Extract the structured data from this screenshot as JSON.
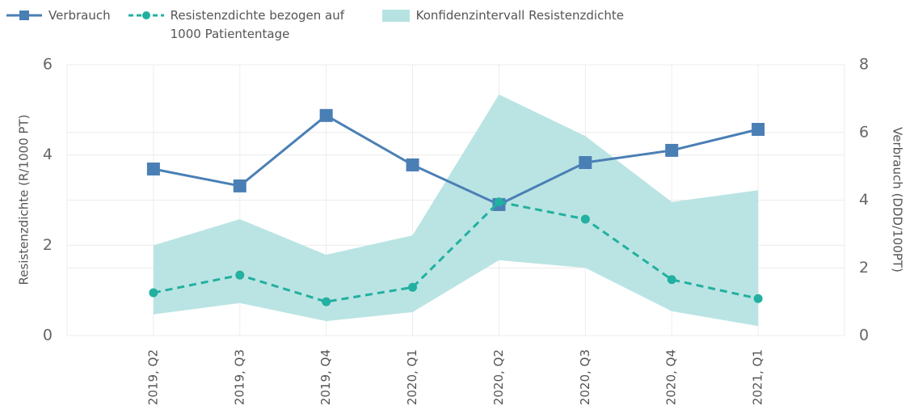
{
  "chart_data": {
    "type": "line",
    "categories": [
      "2019, Q2",
      "2019, Q3",
      "2019, Q4",
      "2020, Q1",
      "2020, Q2",
      "2020, Q3",
      "2020, Q4",
      "2021, Q1"
    ],
    "ylabel": "Resistenzdichte (R/1000 PT)",
    "y2label": "Verbrauch (DDD/100PT)",
    "ylim": [
      0,
      6
    ],
    "yticks": [
      0,
      2,
      4,
      6
    ],
    "y2lim": [
      0,
      8
    ],
    "y2ticks": [
      0,
      2,
      4,
      6,
      8
    ],
    "grid": true,
    "series": [
      {
        "name": "Verbrauch",
        "color": "#4a7fb5",
        "axis": "y2",
        "marker": "square",
        "dash": false,
        "values": [
          4.92,
          4.42,
          6.5,
          5.04,
          3.87,
          5.11,
          5.47,
          6.09
        ]
      },
      {
        "name": "Resistenzdichte bezogen auf 1000 Patiententage",
        "color": "#22b0a0",
        "axis": "y",
        "marker": "circle",
        "dash": true,
        "values": [
          0.95,
          1.34,
          0.75,
          1.07,
          2.96,
          2.58,
          1.24,
          0.82
        ]
      },
      {
        "name": "Konfidenzintervall Resistenzdichte",
        "color": "#b6e3e1",
        "axis": "y",
        "band": true,
        "lower": [
          0.47,
          0.72,
          0.32,
          0.52,
          1.67,
          1.5,
          0.54,
          0.21
        ],
        "upper": [
          2.0,
          2.58,
          1.79,
          2.22,
          5.34,
          4.42,
          2.96,
          3.22
        ]
      }
    ]
  }
}
